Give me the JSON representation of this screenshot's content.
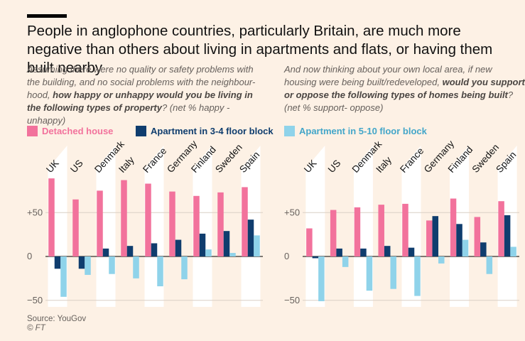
{
  "title": "People in anglophone countries, particularly Britain, are much more negative than others about living in apartments and flats, or having them built nearby",
  "subtitles": {
    "left": {
      "part1": "Assuming there were no quality or safety problems with the building, and no social problems with the neighbour-hood, ",
      "bold": "how happy or unhappy would you be living in the following types of property",
      "part2": "? (net % happy - unhappy)"
    },
    "right": {
      "part1": "And now thinking about your own local area, if new housing were being built/redeveloped, ",
      "bold": "would you support or oppose the following types of homes being built",
      "part2": "? (net % support- oppose)"
    }
  },
  "legend": [
    {
      "label": "Detached house",
      "color": "#f2729c"
    },
    {
      "label": "Apartment in 3-4 floor block",
      "color": "#0f3d6e"
    },
    {
      "label": "Apartment in 5-10 floor block",
      "color": "#8fd3ea"
    }
  ],
  "source": "Source: YouGov",
  "copyright": "© FT",
  "chart_data": [
    {
      "type": "bar",
      "categories": [
        "UK",
        "US",
        "Denmark",
        "Italy",
        "France",
        "Germany",
        "Finland",
        "Sweden",
        "Spain"
      ],
      "series": [
        {
          "name": "Detached house",
          "values": [
            89,
            65,
            75,
            87,
            83,
            74,
            69,
            73,
            79
          ]
        },
        {
          "name": "Apartment in 3-4 floor block",
          "values": [
            -14,
            -14,
            9,
            12,
            15,
            19,
            26,
            29,
            42
          ]
        },
        {
          "name": "Apartment in 5-10 floor block",
          "values": [
            -46,
            -21,
            -20,
            -25,
            -34,
            -26,
            8,
            4,
            24
          ]
        }
      ],
      "ylim": [
        -55,
        100
      ],
      "yticks": [
        -50,
        0,
        50
      ],
      "yticklabels": [
        "−50",
        "0",
        "+50"
      ],
      "grid": true
    },
    {
      "type": "bar",
      "categories": [
        "UK",
        "US",
        "Denmark",
        "Italy",
        "France",
        "Germany",
        "Finland",
        "Sweden",
        "Spain"
      ],
      "series": [
        {
          "name": "Detached house",
          "values": [
            32,
            53,
            56,
            59,
            60,
            41,
            66,
            45,
            63
          ]
        },
        {
          "name": "Apartment in 3-4 floor block",
          "values": [
            -2,
            9,
            9,
            12,
            10,
            46,
            37,
            16,
            47
          ]
        },
        {
          "name": "Apartment in 5-10 floor block",
          "values": [
            -51,
            -12,
            -39,
            -37,
            -45,
            -8,
            19,
            -20,
            11
          ]
        }
      ],
      "ylim": [
        -55,
        100
      ],
      "yticks": [
        -50,
        0,
        50
      ],
      "yticklabels": [
        "−50",
        "0",
        "+50"
      ],
      "grid": true
    }
  ]
}
